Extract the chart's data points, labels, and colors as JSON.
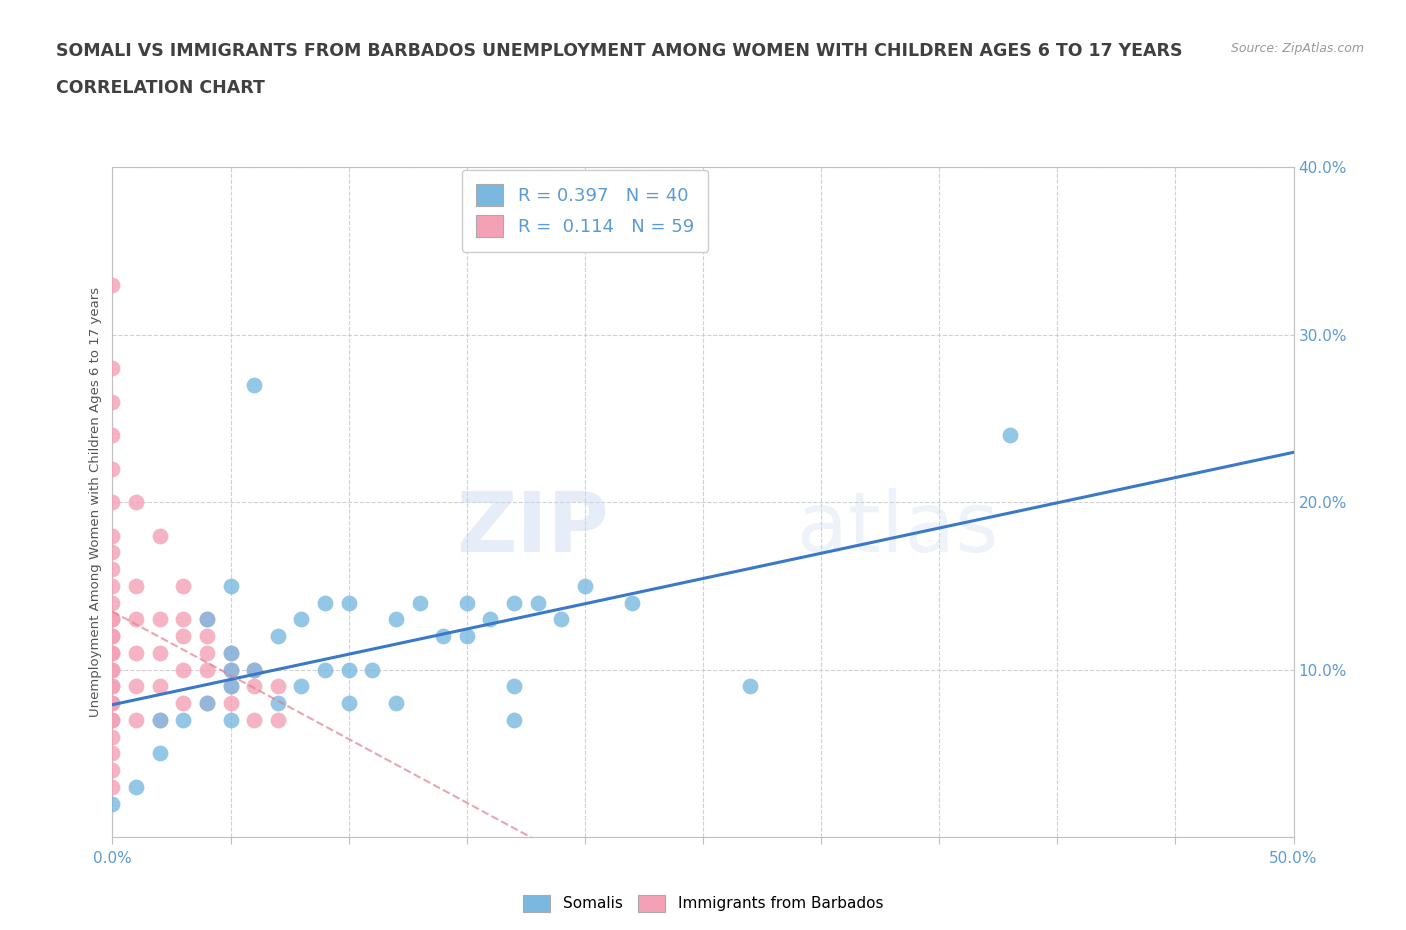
{
  "title_line1": "SOMALI VS IMMIGRANTS FROM BARBADOS UNEMPLOYMENT AMONG WOMEN WITH CHILDREN AGES 6 TO 17 YEARS",
  "title_line2": "CORRELATION CHART",
  "source_text": "Source: ZipAtlas.com",
  "ylabel": "Unemployment Among Women with Children Ages 6 to 17 years",
  "xlim": [
    0.0,
    0.5
  ],
  "ylim": [
    0.0,
    0.4
  ],
  "somali_color": "#7ab8e0",
  "barbados_color": "#f4a0b5",
  "trend_somali_color": "#3a78c9",
  "trend_barbados_color": "#e08090",
  "R_somali": 0.397,
  "N_somali": 40,
  "R_barbados": 0.114,
  "N_barbados": 59,
  "watermark_zip": "ZIP",
  "watermark_atlas": "atlas",
  "background_color": "#ffffff",
  "grid_color": "#cccccc",
  "title_color": "#404040",
  "axis_color": "#5b9bd5",
  "legend_fontsize": 13,
  "title_fontsize": 12.5,
  "label_fontsize": 11,
  "somali_x": [
    0.0,
    0.01,
    0.02,
    0.02,
    0.03,
    0.04,
    0.04,
    0.05,
    0.05,
    0.05,
    0.05,
    0.06,
    0.06,
    0.07,
    0.07,
    0.08,
    0.08,
    0.09,
    0.09,
    0.1,
    0.1,
    0.1,
    0.11,
    0.12,
    0.12,
    0.13,
    0.14,
    0.15,
    0.15,
    0.16,
    0.17,
    0.17,
    0.17,
    0.18,
    0.19,
    0.2,
    0.22,
    0.27,
    0.38,
    0.05
  ],
  "somali_y": [
    0.02,
    0.03,
    0.05,
    0.07,
    0.07,
    0.08,
    0.13,
    0.07,
    0.09,
    0.11,
    0.15,
    0.1,
    0.27,
    0.08,
    0.12,
    0.09,
    0.13,
    0.1,
    0.14,
    0.08,
    0.1,
    0.14,
    0.1,
    0.08,
    0.13,
    0.14,
    0.12,
    0.12,
    0.14,
    0.13,
    0.07,
    0.09,
    0.14,
    0.14,
    0.13,
    0.15,
    0.14,
    0.09,
    0.24,
    0.1
  ],
  "barbados_x": [
    0.0,
    0.0,
    0.0,
    0.0,
    0.0,
    0.0,
    0.0,
    0.0,
    0.0,
    0.0,
    0.0,
    0.0,
    0.0,
    0.0,
    0.0,
    0.0,
    0.0,
    0.0,
    0.0,
    0.0,
    0.0,
    0.0,
    0.0,
    0.0,
    0.0,
    0.0,
    0.0,
    0.0,
    0.0,
    0.01,
    0.01,
    0.01,
    0.01,
    0.01,
    0.01,
    0.02,
    0.02,
    0.02,
    0.02,
    0.02,
    0.03,
    0.03,
    0.03,
    0.03,
    0.03,
    0.04,
    0.04,
    0.04,
    0.04,
    0.04,
    0.05,
    0.05,
    0.05,
    0.05,
    0.06,
    0.06,
    0.06,
    0.07,
    0.07
  ],
  "barbados_y": [
    0.03,
    0.04,
    0.05,
    0.06,
    0.07,
    0.07,
    0.08,
    0.08,
    0.09,
    0.09,
    0.1,
    0.1,
    0.11,
    0.11,
    0.12,
    0.12,
    0.13,
    0.13,
    0.14,
    0.15,
    0.16,
    0.17,
    0.18,
    0.2,
    0.22,
    0.24,
    0.26,
    0.28,
    0.33,
    0.07,
    0.09,
    0.11,
    0.13,
    0.15,
    0.2,
    0.07,
    0.09,
    0.11,
    0.13,
    0.18,
    0.08,
    0.1,
    0.12,
    0.13,
    0.15,
    0.08,
    0.1,
    0.11,
    0.12,
    0.13,
    0.08,
    0.09,
    0.1,
    0.11,
    0.07,
    0.09,
    0.1,
    0.07,
    0.09
  ]
}
